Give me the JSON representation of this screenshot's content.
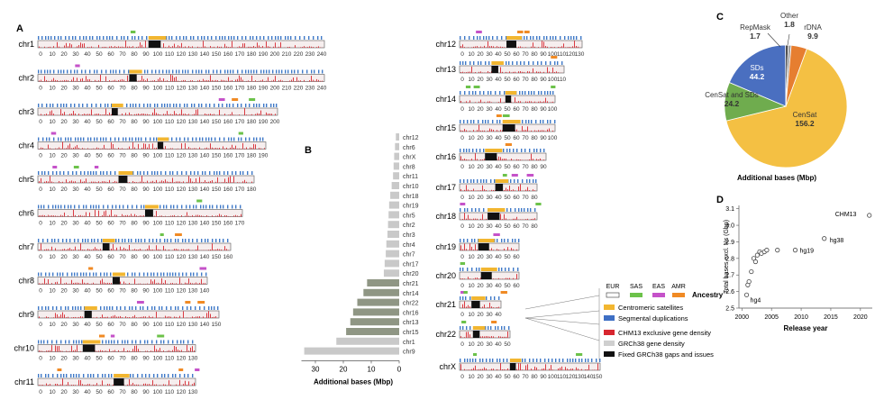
{
  "panels": {
    "a": "A",
    "b": "B",
    "c": "C",
    "d": "D"
  },
  "colors": {
    "eur": "#ffffff",
    "sas": "#6cc24a",
    "eas": "#c552c9",
    "amr": "#f08a24",
    "centromeric": "#f2b630",
    "segdup": "#3e6fc4",
    "chm13_density": "#d7262f",
    "grch38_density": "#cfcfcf",
    "gaps": "#111111",
    "track_blue": "#3f79c8",
    "pie_censat": "#f4c043",
    "pie_sds": "#4a6fc0",
    "pie_censat_sds": "#6fac4e",
    "pie_repmask": "#3a3a3a",
    "pie_other": "#9e9e9e",
    "pie_rdna": "#e67e30",
    "bar_light": "#c9c9c9",
    "bar_dark": "#8f9684"
  },
  "chromosomes_left": [
    {
      "name": "chr1",
      "ticks": [
        "0",
        "10",
        "20",
        "30",
        "40",
        "50",
        "60",
        "70",
        "80",
        "90",
        "100",
        "110",
        "120",
        "130",
        "140",
        "150",
        "160",
        "170",
        "180",
        "190",
        "200",
        "210",
        "220",
        "230",
        "240"
      ]
    },
    {
      "name": "chr2",
      "ticks": [
        "0",
        "10",
        "20",
        "30",
        "40",
        "50",
        "60",
        "70",
        "80",
        "90",
        "100",
        "110",
        "120",
        "130",
        "140",
        "150",
        "160",
        "170",
        "180",
        "190",
        "200",
        "210",
        "220",
        "230",
        "240"
      ]
    },
    {
      "name": "chr3",
      "ticks": [
        "0",
        "10",
        "20",
        "30",
        "40",
        "50",
        "60",
        "70",
        "80",
        "90",
        "100",
        "110",
        "120",
        "130",
        "140",
        "150",
        "160",
        "170",
        "180",
        "190",
        "200"
      ]
    },
    {
      "name": "chr4",
      "ticks": [
        "0",
        "10",
        "20",
        "30",
        "40",
        "50",
        "60",
        "70",
        "80",
        "90",
        "100",
        "110",
        "120",
        "130",
        "140",
        "150",
        "160",
        "170",
        "180",
        "190"
      ]
    },
    {
      "name": "chr5",
      "ticks": [
        "0",
        "10",
        "20",
        "30",
        "40",
        "50",
        "60",
        "70",
        "80",
        "90",
        "100",
        "110",
        "120",
        "130",
        "140",
        "150",
        "160",
        "170",
        "180"
      ]
    },
    {
      "name": "chr6",
      "ticks": [
        "0",
        "10",
        "20",
        "30",
        "40",
        "50",
        "60",
        "70",
        "80",
        "90",
        "100",
        "110",
        "120",
        "130",
        "140",
        "150",
        "160",
        "170"
      ]
    },
    {
      "name": "chr7",
      "ticks": [
        "0",
        "10",
        "20",
        "30",
        "40",
        "50",
        "60",
        "70",
        "80",
        "90",
        "100",
        "110",
        "120",
        "130",
        "140",
        "150",
        "160"
      ]
    },
    {
      "name": "chr8",
      "ticks": [
        "0",
        "10",
        "20",
        "30",
        "40",
        "50",
        "60",
        "70",
        "80",
        "90",
        "100",
        "110",
        "120",
        "130",
        "140"
      ]
    },
    {
      "name": "chr9",
      "ticks": [
        "0",
        "10",
        "20",
        "30",
        "40",
        "50",
        "60",
        "70",
        "80",
        "90",
        "100",
        "110",
        "120",
        "130",
        "140",
        "150"
      ]
    },
    {
      "name": "chr10",
      "ticks": [
        "0",
        "10",
        "20",
        "30",
        "40",
        "50",
        "60",
        "70",
        "80",
        "90",
        "100",
        "110",
        "120",
        "130"
      ]
    },
    {
      "name": "chr11",
      "ticks": [
        "0",
        "10",
        "20",
        "30",
        "40",
        "50",
        "60",
        "70",
        "80",
        "90",
        "100",
        "110",
        "120",
        "130"
      ]
    }
  ],
  "chromosomes_right": [
    {
      "name": "chr12",
      "ticks": [
        "0",
        "10",
        "20",
        "30",
        "40",
        "50",
        "60",
        "70",
        "80",
        "90",
        "100",
        "110",
        "120",
        "130"
      ]
    },
    {
      "name": "chr13",
      "ticks": [
        "0",
        "10",
        "20",
        "30",
        "40",
        "50",
        "60",
        "70",
        "80",
        "90",
        "100",
        "110"
      ]
    },
    {
      "name": "chr14",
      "ticks": [
        "0",
        "10",
        "20",
        "30",
        "40",
        "50",
        "60",
        "70",
        "80",
        "90",
        "100"
      ]
    },
    {
      "name": "chr15",
      "ticks": [
        "0",
        "10",
        "20",
        "30",
        "40",
        "50",
        "60",
        "70",
        "80",
        "90",
        "100"
      ]
    },
    {
      "name": "chr16",
      "ticks": [
        "0",
        "10",
        "20",
        "30",
        "40",
        "50",
        "60",
        "70",
        "80",
        "90"
      ]
    },
    {
      "name": "chr17",
      "ticks": [
        "0",
        "10",
        "20",
        "30",
        "40",
        "50",
        "60",
        "70",
        "80"
      ]
    },
    {
      "name": "chr18",
      "ticks": [
        "0",
        "10",
        "20",
        "30",
        "40",
        "50",
        "60",
        "70",
        "80"
      ]
    },
    {
      "name": "chr19",
      "ticks": [
        "0",
        "10",
        "20",
        "30",
        "40",
        "50",
        "60"
      ]
    },
    {
      "name": "chr20",
      "ticks": [
        "0",
        "10",
        "20",
        "30",
        "40",
        "50",
        "60"
      ]
    },
    {
      "name": "chr21",
      "ticks": [
        "0",
        "10",
        "20",
        "30",
        "40"
      ]
    },
    {
      "name": "chr22",
      "ticks": [
        "0",
        "10",
        "20",
        "30",
        "40",
        "50"
      ]
    },
    {
      "name": "chrX",
      "ticks": [
        "0",
        "10",
        "20",
        "30",
        "40",
        "50",
        "60",
        "70",
        "80",
        "90",
        "100",
        "110",
        "120",
        "130",
        "140",
        "150"
      ]
    }
  ],
  "legend": {
    "ancestry": [
      "EUR",
      "SAS",
      "EAS",
      "AMR"
    ],
    "ancestry_title": "Ancestry",
    "items": [
      "Centromeric satellites",
      "Segmental duplications",
      "CHM13 exclusive gene density",
      "GRCh38 gene density",
      "Fixed GRCh38 gaps and issues"
    ]
  },
  "chart_data": [
    {
      "panel": "B",
      "type": "bar",
      "orientation": "horizontal",
      "xlabel": "Additional bases (Mbp)",
      "xticks": [
        "30",
        "20",
        "10",
        "0"
      ],
      "xlim": [
        0,
        35
      ],
      "categories": [
        "chr12",
        "chr6",
        "chrX",
        "chr8",
        "chr11",
        "chr10",
        "chr18",
        "chr19",
        "chr5",
        "chr2",
        "chr3",
        "chr4",
        "chr7",
        "chr17",
        "chr20",
        "chr21",
        "chr14",
        "chr22",
        "chr16",
        "chr13",
        "chr15",
        "chr1",
        "chr9"
      ],
      "values": [
        1.2,
        1.5,
        1.8,
        2.0,
        2.2,
        2.7,
        3.2,
        3.6,
        3.8,
        4.0,
        4.2,
        4.6,
        4.8,
        5.2,
        5.5,
        11.5,
        12.8,
        15.0,
        16.5,
        17.5,
        19.0,
        22.5,
        34.0
      ],
      "highlight": [
        "chr21",
        "chr14",
        "chr22",
        "chr16",
        "chr13",
        "chr15"
      ]
    },
    {
      "panel": "C",
      "type": "pie",
      "title": "Additional bases (Mbp)",
      "slices": [
        {
          "label": "CenSat",
          "value": 156.2
        },
        {
          "label": "CenSat and SDs",
          "value": 24.2
        },
        {
          "label": "SDs",
          "value": 44.2
        },
        {
          "label": "RepMask",
          "value": 1.7
        },
        {
          "label": "Other",
          "value": 1.8
        },
        {
          "label": "rDNA",
          "value": 9.9
        }
      ]
    },
    {
      "panel": "D",
      "type": "scatter",
      "xlabel": "Release year",
      "ylabel": "Total bases excl. Ns (Gbp)",
      "xticks": [
        "2000",
        "2005",
        "2010",
        "2015",
        "2020"
      ],
      "yticks": [
        "2.5",
        "2.6",
        "2.7",
        "2.8",
        "2.9",
        "3.0",
        "3.1"
      ],
      "xlim": [
        1999.5,
        2022
      ],
      "ylim": [
        2.5,
        3.12
      ],
      "x": [
        2000.8,
        2001.0,
        2001.2,
        2001.6,
        2002.0,
        2002.3,
        2002.6,
        2003.0,
        2003.3,
        2003.8,
        2004.2,
        2006.0,
        2009.0,
        2013.9,
        2021.5
      ],
      "y": [
        2.58,
        2.64,
        2.66,
        2.72,
        2.8,
        2.78,
        2.82,
        2.84,
        2.83,
        2.84,
        2.85,
        2.85,
        2.85,
        2.92,
        3.06
      ],
      "labels": [
        {
          "text": "hg4",
          "x": 2000.8,
          "y": 2.58
        },
        {
          "text": "hg19",
          "x": 2009.0,
          "y": 2.85
        },
        {
          "text": "hg38",
          "x": 2013.9,
          "y": 2.92
        },
        {
          "text": "CHM13",
          "x": 2021.5,
          "y": 3.06
        }
      ]
    }
  ]
}
